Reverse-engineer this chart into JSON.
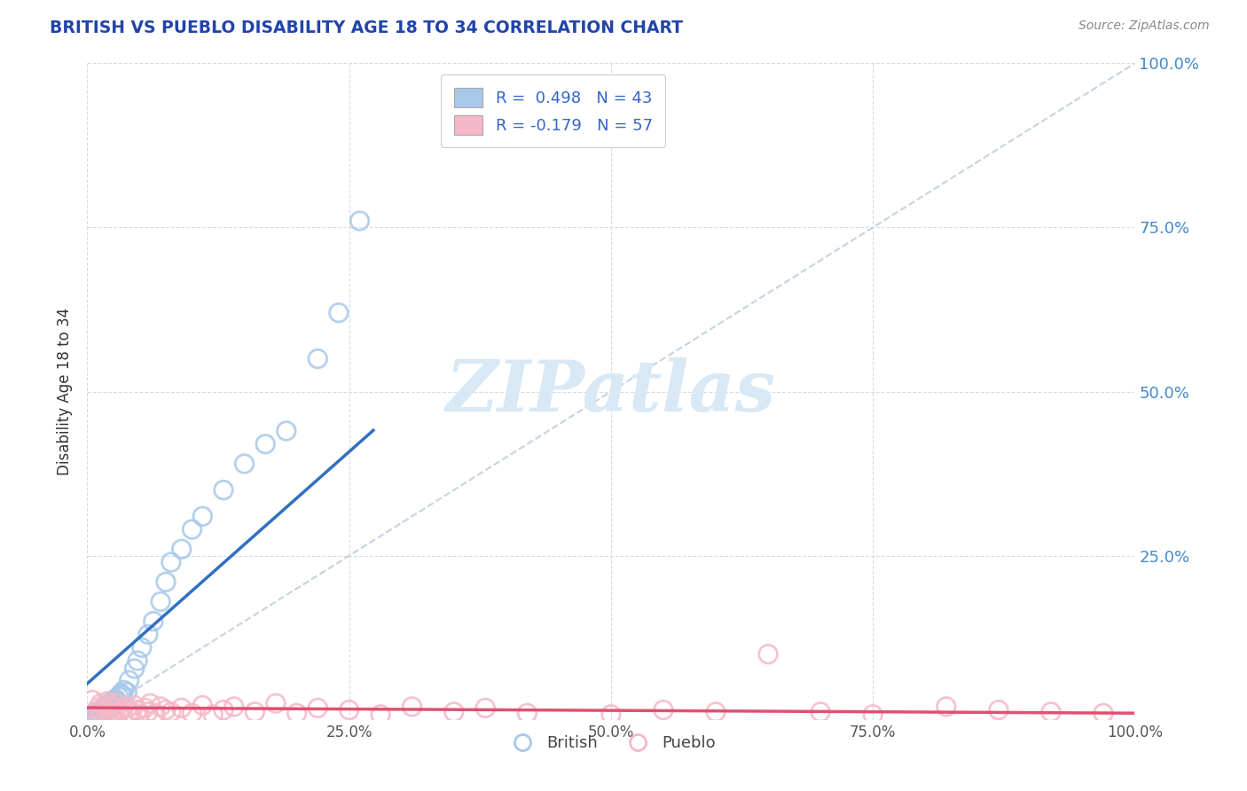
{
  "title": "BRITISH VS PUEBLO DISABILITY AGE 18 TO 34 CORRELATION CHART",
  "source_text": "Source: ZipAtlas.com",
  "ylabel": "Disability Age 18 to 34",
  "xlim": [
    0,
    1.0
  ],
  "ylim": [
    0,
    1.0
  ],
  "xtick_vals": [
    0.0,
    0.25,
    0.5,
    0.75,
    1.0
  ],
  "xtick_labels": [
    "0.0%",
    "25.0%",
    "50.0%",
    "75.0%",
    "100.0%"
  ],
  "ytick_vals": [
    0.0,
    0.25,
    0.5,
    0.75,
    1.0
  ],
  "ytick_labels_right": [
    "",
    "25.0%",
    "50.0%",
    "75.0%",
    "100.0%"
  ],
  "british_R": 0.498,
  "british_N": 43,
  "pueblo_R": -0.179,
  "pueblo_N": 57,
  "british_color": "#a8c8e8",
  "british_edge": "#7aafd4",
  "pueblo_color": "#f5b8c8",
  "pueblo_edge": "#e88aa0",
  "british_line_color": "#3070c0",
  "pueblo_line_color": "#e05070",
  "diagonal_color": "#b8c8d8",
  "background_color": "#ffffff",
  "grid_color": "#d0dde8",
  "watermark_color": "#d8e8f5",
  "title_color": "#2244aa",
  "source_color": "#888888",
  "axis_label_color": "#333333",
  "right_tick_color": "#4488cc",
  "legend_text_color": "#3366cc",
  "bottom_legend_color": "#444444",
  "watermark": "ZIPatlas",
  "british_x": [
    0.005,
    0.008,
    0.01,
    0.01,
    0.012,
    0.013,
    0.015,
    0.015,
    0.017,
    0.018,
    0.019,
    0.02,
    0.02,
    0.022,
    0.023,
    0.025,
    0.025,
    0.027,
    0.028,
    0.03,
    0.032,
    0.033,
    0.035,
    0.038,
    0.04,
    0.045,
    0.048,
    0.052,
    0.058,
    0.063,
    0.07,
    0.075,
    0.08,
    0.09,
    0.1,
    0.11,
    0.13,
    0.15,
    0.17,
    0.19,
    0.22,
    0.24,
    0.26
  ],
  "british_y": [
    0.005,
    0.01,
    0.008,
    0.012,
    0.01,
    0.015,
    0.013,
    0.018,
    0.012,
    0.02,
    0.015,
    0.018,
    0.022,
    0.025,
    0.02,
    0.03,
    0.025,
    0.032,
    0.028,
    0.035,
    0.04,
    0.038,
    0.045,
    0.042,
    0.06,
    0.078,
    0.09,
    0.11,
    0.13,
    0.15,
    0.18,
    0.21,
    0.24,
    0.26,
    0.29,
    0.31,
    0.35,
    0.39,
    0.42,
    0.44,
    0.55,
    0.62,
    0.76
  ],
  "pueblo_x": [
    0.005,
    0.008,
    0.01,
    0.012,
    0.013,
    0.015,
    0.016,
    0.018,
    0.019,
    0.02,
    0.022,
    0.023,
    0.025,
    0.027,
    0.028,
    0.03,
    0.032,
    0.035,
    0.038,
    0.04,
    0.042,
    0.045,
    0.048,
    0.05,
    0.055,
    0.058,
    0.06,
    0.065,
    0.07,
    0.075,
    0.08,
    0.09,
    0.1,
    0.11,
    0.12,
    0.13,
    0.14,
    0.16,
    0.18,
    0.2,
    0.22,
    0.25,
    0.28,
    0.31,
    0.35,
    0.38,
    0.42,
    0.5,
    0.55,
    0.6,
    0.65,
    0.7,
    0.75,
    0.82,
    0.87,
    0.92,
    0.97
  ],
  "pueblo_y": [
    0.03,
    0.01,
    0.018,
    0.008,
    0.025,
    0.012,
    0.02,
    0.015,
    0.028,
    0.01,
    0.022,
    0.008,
    0.018,
    0.012,
    0.025,
    0.008,
    0.015,
    0.02,
    0.018,
    0.012,
    0.01,
    0.022,
    0.015,
    0.008,
    0.018,
    0.012,
    0.025,
    0.01,
    0.02,
    0.015,
    0.012,
    0.018,
    0.01,
    0.022,
    0.008,
    0.015,
    0.02,
    0.012,
    0.025,
    0.01,
    0.018,
    0.015,
    0.008,
    0.02,
    0.012,
    0.018,
    0.01,
    0.008,
    0.015,
    0.012,
    0.1,
    0.012,
    0.008,
    0.02,
    0.015,
    0.012,
    0.01
  ]
}
